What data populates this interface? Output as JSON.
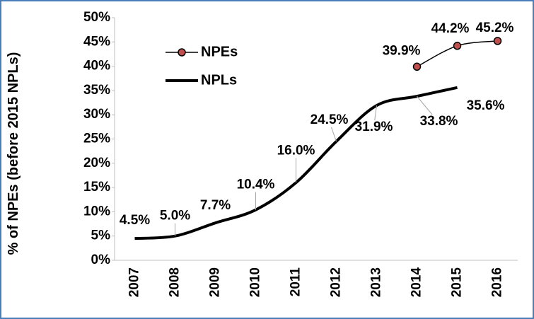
{
  "chart_data": {
    "type": "line",
    "y_label": "% of NPEs (before 2015 NPLs)",
    "categories": [
      "2007",
      "2008",
      "2009",
      "2010",
      "2011",
      "2012",
      "2013",
      "2014",
      "2015",
      "2016"
    ],
    "series": [
      {
        "name": "NPEs",
        "color": "#000000",
        "marker_color": "#c0504d",
        "values": [
          null,
          null,
          null,
          null,
          null,
          null,
          null,
          39.9,
          44.2,
          45.2
        ],
        "value_labels": [
          null,
          null,
          null,
          null,
          null,
          null,
          null,
          "39.9%",
          "44.2%",
          "45.2%"
        ]
      },
      {
        "name": "NPLs",
        "color": "#000000",
        "values": [
          4.5,
          5.0,
          7.7,
          10.4,
          16.0,
          24.5,
          31.9,
          33.8,
          35.6,
          null
        ],
        "value_labels": [
          "4.5%",
          "5.0%",
          "7.7%",
          "10.4%",
          "16.0%",
          "24.5%",
          "31.9%",
          "33.8%",
          "35.6%",
          null
        ]
      }
    ],
    "ylim": [
      0,
      50
    ],
    "yticks": [
      {
        "value": 0,
        "label": "0%"
      },
      {
        "value": 5,
        "label": "5%"
      },
      {
        "value": 10,
        "label": "10%"
      },
      {
        "value": 15,
        "label": "15%"
      },
      {
        "value": 20,
        "label": "20%"
      },
      {
        "value": 25,
        "label": "25%"
      },
      {
        "value": 30,
        "label": "30%"
      },
      {
        "value": 35,
        "label": "35%"
      },
      {
        "value": 40,
        "label": "40%"
      },
      {
        "value": 45,
        "label": "45%"
      },
      {
        "value": 50,
        "label": "50%"
      }
    ],
    "grid": false,
    "legend": "upper left"
  }
}
